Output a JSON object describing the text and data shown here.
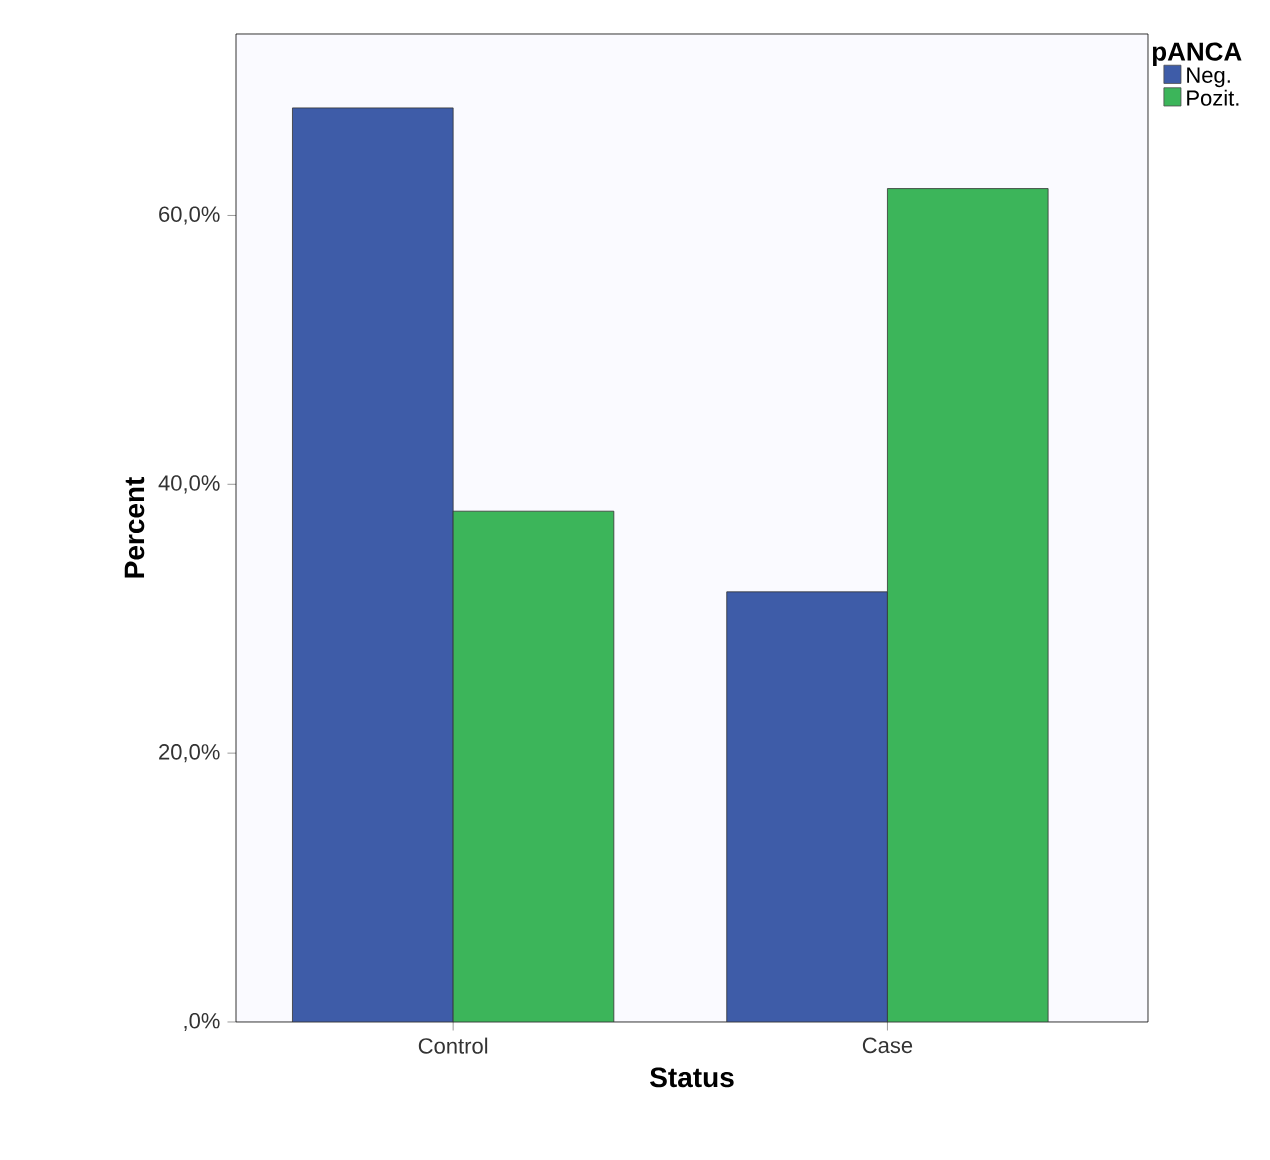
{
  "chart_data": {
    "type": "bar",
    "xlabel": "Status",
    "ylabel": "Percent",
    "legend_title": "pANCA",
    "categories": [
      "Control",
      "Case"
    ],
    "series": [
      {
        "name": "Neg.",
        "color": "#3e5ca8",
        "values": [
          68,
          32
        ]
      },
      {
        "name": "Pozit.",
        "color": "#3cb55a",
        "values": [
          38,
          62
        ]
      }
    ],
    "ylim": [
      0,
      73.5
    ],
    "yticks": [
      {
        "value": 0,
        "label": ",0%"
      },
      {
        "value": 20,
        "label": "20,0%"
      },
      {
        "value": 40,
        "label": "40,0%"
      },
      {
        "value": 60,
        "label": "60,0%"
      }
    ],
    "grid": false,
    "legend": "top right"
  }
}
